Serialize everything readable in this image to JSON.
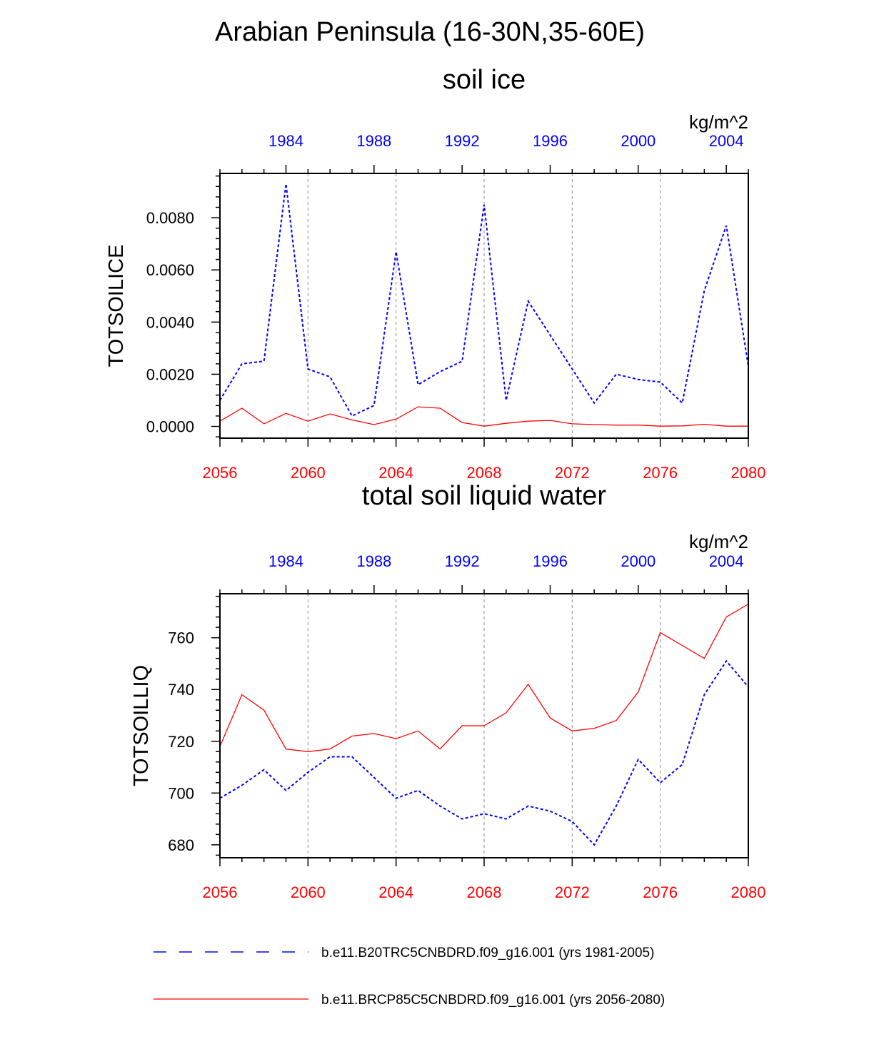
{
  "figure_title": "Arabian Peninsula (16-30N,35-60E)",
  "colors": {
    "bottom_axis": "#ff0000",
    "top_axis": "#0000ff",
    "series_hist": "#0000ff",
    "series_future": "#ff0000",
    "grid": "#888888"
  },
  "legend": {
    "items": [
      {
        "label": "b.e11.B20TRC5CNBDRD.f09_g16.001 (yrs 1981-2005)",
        "color": "#0000ff",
        "style": "dashed"
      },
      {
        "label": "b.e11.BRCP85C5CNBDRD.f09_g16.001 (yrs 2056-2080)",
        "color": "#ff0000",
        "style": "solid"
      }
    ]
  },
  "chart_data": [
    {
      "type": "line",
      "title": "soil ice",
      "units": "kg/m^2",
      "ylabel": "TOTSOILICE",
      "xlim": [
        2056,
        2080
      ],
      "x_top_lim": [
        1981,
        2005
      ],
      "ylim": [
        -0.00045,
        0.0097
      ],
      "yticks": [
        0.0,
        0.002,
        0.004,
        0.006,
        0.008
      ],
      "ytick_labels": [
        "0.0000",
        "0.0020",
        "0.0040",
        "0.0060",
        "0.0080"
      ],
      "xticks_bottom": [
        2056,
        2060,
        2064,
        2068,
        2072,
        2076,
        2080
      ],
      "xticks_top": [
        1984,
        1988,
        1992,
        1996,
        2000,
        2004
      ],
      "x": [
        2056,
        2057,
        2058,
        2059,
        2060,
        2061,
        2062,
        2063,
        2064,
        2065,
        2066,
        2067,
        2068,
        2069,
        2070,
        2071,
        2072,
        2073,
        2074,
        2075,
        2076,
        2077,
        2078,
        2079,
        2080
      ],
      "series": [
        {
          "name": "b.e11.B20TRC5CNBDRD.f09_g16.001 (yrs 1981-2005)",
          "style": "dashed",
          "values": [
            0.001,
            0.0024,
            0.0025,
            0.0093,
            0.0022,
            0.0019,
            0.0004,
            0.0008,
            0.0067,
            0.0016,
            0.0021,
            0.0025,
            0.0085,
            0.001,
            0.0048,
            0.0035,
            0.0022,
            0.0009,
            0.002,
            0.0018,
            0.0017,
            0.0009,
            0.0052,
            0.0077,
            0.0023
          ]
        },
        {
          "name": "b.e11.BRCP85C5CNBDRD.f09_g16.001 (yrs 2056-2080)",
          "style": "solid",
          "values": [
            0.0002,
            0.0007,
            0.0001,
            0.0005,
            0.0002,
            0.00048,
            0.00025,
            7e-05,
            0.00028,
            0.00075,
            0.0007,
            0.00015,
            1e-05,
            0.00012,
            0.0002,
            0.00023,
            0.0001,
            7e-05,
            5e-05,
            5e-05,
            1e-05,
            2e-05,
            8e-05,
            1e-05,
            1e-05
          ]
        }
      ]
    },
    {
      "type": "line",
      "title": "total soil liquid water",
      "units": "kg/m^2",
      "ylabel": "TOTSOILLIQ",
      "xlim": [
        2056,
        2080
      ],
      "x_top_lim": [
        1981,
        2005
      ],
      "ylim": [
        675,
        777
      ],
      "yticks": [
        680,
        700,
        720,
        740,
        760
      ],
      "ytick_labels": [
        "680",
        "700",
        "720",
        "740",
        "760"
      ],
      "xticks_bottom": [
        2056,
        2060,
        2064,
        2068,
        2072,
        2076,
        2080
      ],
      "xticks_top": [
        1984,
        1988,
        1992,
        1996,
        2000,
        2004
      ],
      "x": [
        2056,
        2057,
        2058,
        2059,
        2060,
        2061,
        2062,
        2063,
        2064,
        2065,
        2066,
        2067,
        2068,
        2069,
        2070,
        2071,
        2072,
        2073,
        2074,
        2075,
        2076,
        2077,
        2078,
        2079,
        2080
      ],
      "series": [
        {
          "name": "b.e11.B20TRC5CNBDRD.f09_g16.001 (yrs 1981-2005)",
          "style": "dashed",
          "values": [
            698,
            703,
            709,
            701,
            708,
            714,
            714,
            706,
            698,
            701,
            695,
            690,
            692,
            690,
            695,
            693,
            689,
            680,
            695,
            713,
            704,
            711,
            738,
            751,
            741
          ]
        },
        {
          "name": "b.e11.BRCP85C5CNBDRD.f09_g16.001 (yrs 2056-2080)",
          "style": "solid",
          "values": [
            718,
            738,
            732,
            717,
            716,
            717,
            722,
            723,
            721,
            724,
            717,
            726,
            726,
            731,
            742,
            729,
            724,
            725,
            728,
            739,
            762,
            757,
            752,
            768,
            773
          ]
        }
      ]
    }
  ]
}
